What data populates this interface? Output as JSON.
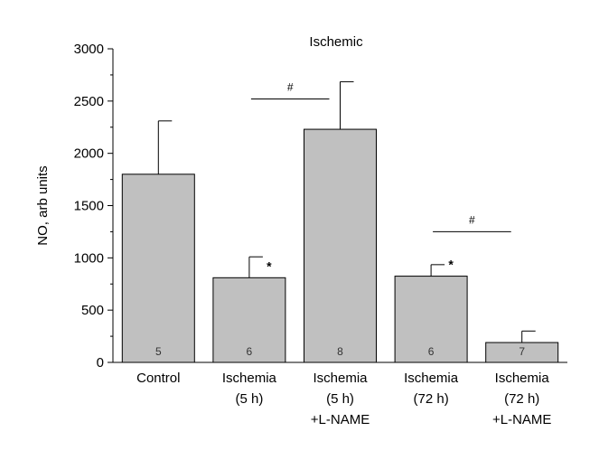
{
  "chart_data": {
    "type": "bar",
    "title": "Ischemic",
    "ylabel": "NO, arb units",
    "xlabel": "",
    "ylim": [
      0,
      3000
    ],
    "yticks": [
      0,
      500,
      1000,
      1500,
      2000,
      2500,
      3000
    ],
    "bar_color": "#c0c0c0",
    "grid": false,
    "categories": [
      [
        "Control"
      ],
      [
        "Ischemia",
        "(5 h)"
      ],
      [
        "Ischemia",
        "(5 h)",
        "+L-NAME"
      ],
      [
        "Ischemia",
        "(72 h)"
      ],
      [
        "Ischemia",
        "(72 h)",
        "+L-NAME"
      ]
    ],
    "values": [
      1800,
      810,
      2230,
      825,
      190
    ],
    "errors": [
      510,
      200,
      455,
      110,
      110
    ],
    "n": [
      "5",
      "6",
      "8",
      "6",
      "7"
    ],
    "star_marks": [
      "",
      "*",
      "",
      "*",
      ""
    ],
    "brackets": [
      {
        "from": 1,
        "to": 2,
        "level": 2520,
        "label": "#"
      },
      {
        "from": 3,
        "to": 4,
        "level": 1250,
        "label": "#"
      }
    ]
  }
}
